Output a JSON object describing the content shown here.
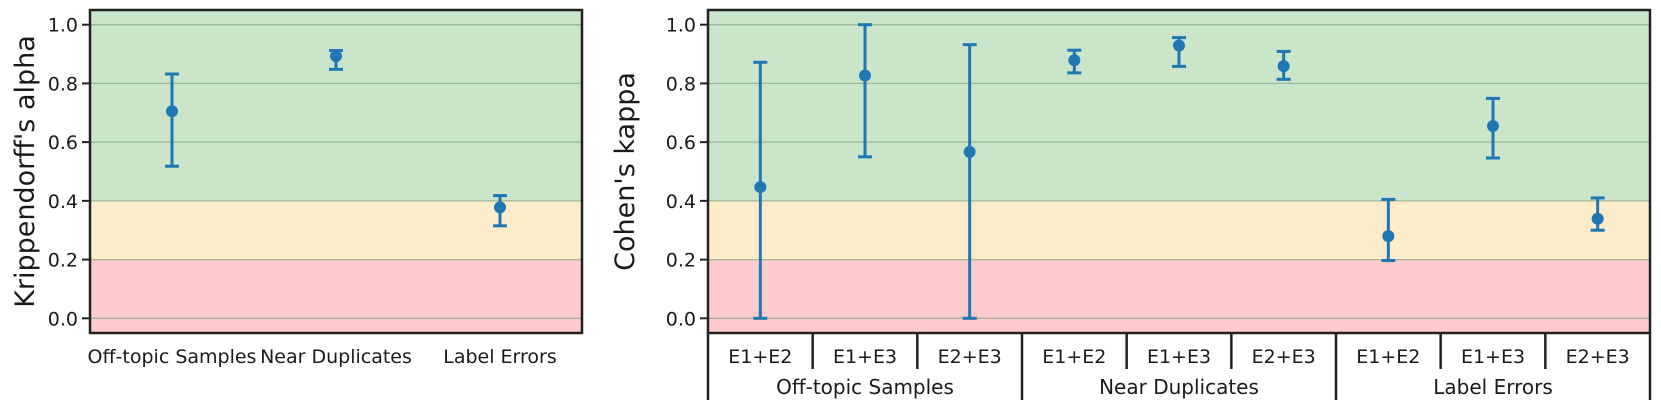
{
  "chart_data": [
    {
      "type": "scatter",
      "subtype": "point-with-errorbars",
      "ylabel": "Krippendorff's alpha",
      "xlabel": "",
      "ylim": [
        -0.05,
        1.05
      ],
      "yticks": [
        "0.0",
        "0.2",
        "0.4",
        "0.6",
        "0.8",
        "1.0"
      ],
      "categories": [
        "Off-topic Samples",
        "Near Duplicates",
        "Label Errors"
      ],
      "series": [
        {
          "values": [
            0.705,
            0.893,
            0.378
          ],
          "err_low": [
            0.518,
            0.848,
            0.315
          ],
          "err_high": [
            0.832,
            0.912,
            0.418
          ]
        }
      ],
      "bands": [
        {
          "from": 0.4,
          "to": 1.05,
          "color": "#cbe5cb"
        },
        {
          "from": 0.2,
          "to": 0.4,
          "color": "#fdecca"
        },
        {
          "from": -0.05,
          "to": 0.2,
          "color": "#fdcbcb"
        }
      ],
      "grid": true,
      "marker_color": "#1f77b4"
    },
    {
      "type": "scatter",
      "subtype": "point-with-errorbars",
      "ylabel": "Cohen's kappa",
      "xlabel": "",
      "ylim": [
        -0.05,
        1.05
      ],
      "yticks": [
        "0.0",
        "0.2",
        "0.4",
        "0.6",
        "0.8",
        "1.0"
      ],
      "categories": [
        "E1+E2",
        "E1+E3",
        "E2+E3",
        "E1+E2",
        "E1+E3",
        "E2+E3",
        "E1+E2",
        "E1+E3",
        "E2+E3"
      ],
      "groups": [
        "Off-topic Samples",
        "Near Duplicates",
        "Label Errors"
      ],
      "series": [
        {
          "values": [
            0.447,
            0.827,
            0.567,
            0.879,
            0.929,
            0.859,
            0.28,
            0.655,
            0.339
          ],
          "err_low": [
            0.0,
            0.55,
            0.0,
            0.836,
            0.858,
            0.814,
            0.197,
            0.546,
            0.3
          ],
          "err_high": [
            0.872,
            1.0,
            0.932,
            0.913,
            0.956,
            0.909,
            0.405,
            0.749,
            0.41
          ]
        }
      ],
      "bands": [
        {
          "from": 0.4,
          "to": 1.05,
          "color": "#cbe5cb"
        },
        {
          "from": 0.2,
          "to": 0.4,
          "color": "#fdecca"
        },
        {
          "from": -0.05,
          "to": 0.2,
          "color": "#fdcbcb"
        }
      ],
      "grid": true,
      "marker_color": "#1f77b4"
    }
  ]
}
